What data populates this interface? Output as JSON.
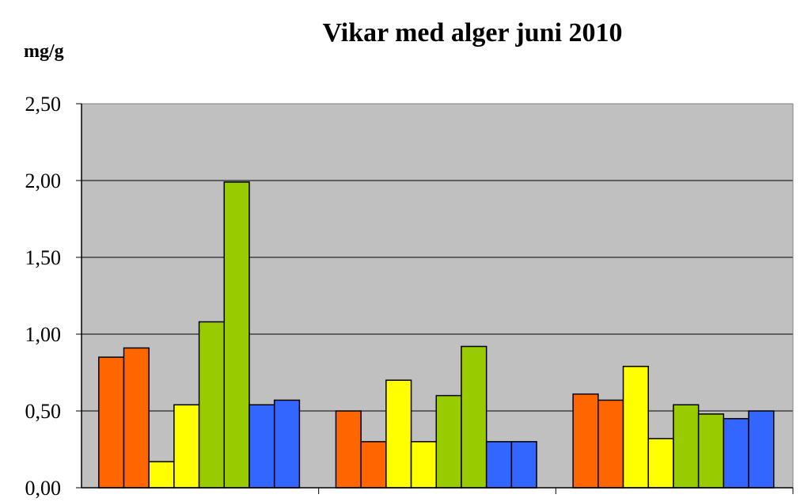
{
  "chart_data": {
    "type": "bar",
    "title": "Vikar med alger juni 2010",
    "ylabel": "mg/g",
    "xlabel": "",
    "ylim": [
      0,
      2.5
    ],
    "yticks": [
      "0,00",
      "0,50",
      "1,00",
      "1,50",
      "2,00",
      "2,50"
    ],
    "grid": true,
    "plot_background": "#C0C0C0",
    "categories": [
      "",
      "",
      ""
    ],
    "bar_colors": [
      "#FF6600",
      "#FF6600",
      "#FFFF00",
      "#FFFF00",
      "#99CC00",
      "#99CC00",
      "#3366FF",
      "#3366FF"
    ],
    "groups": [
      [
        0.85,
        0.91,
        0.17,
        0.54,
        1.08,
        1.99,
        0.54,
        0.57
      ],
      [
        0.5,
        0.3,
        0.7,
        0.3,
        0.6,
        0.92,
        0.3,
        0.3
      ],
      [
        0.61,
        0.57,
        0.79,
        0.32,
        0.54,
        0.48,
        0.45,
        0.5
      ]
    ]
  }
}
